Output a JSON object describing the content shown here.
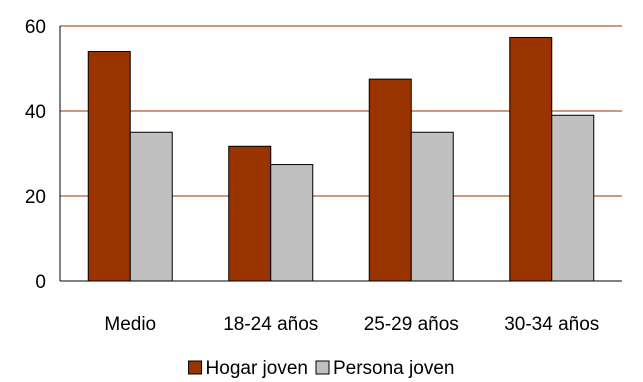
{
  "chart_data": {
    "type": "bar",
    "categories": [
      "Medio",
      "18-24 años",
      "25-29 años",
      "30-34 años"
    ],
    "series": [
      {
        "name": "Hogar joven",
        "color": "#993300",
        "values": [
          54,
          31.7,
          47.5,
          57.3
        ]
      },
      {
        "name": "Persona joven",
        "color": "#c0c0c0",
        "values": [
          35,
          27.4,
          35,
          39
        ]
      }
    ],
    "ylim": [
      0,
      60
    ],
    "yticks": [
      0,
      20,
      40,
      60
    ],
    "gridline_color": "#993300",
    "grid": true,
    "legend": "bottom"
  }
}
